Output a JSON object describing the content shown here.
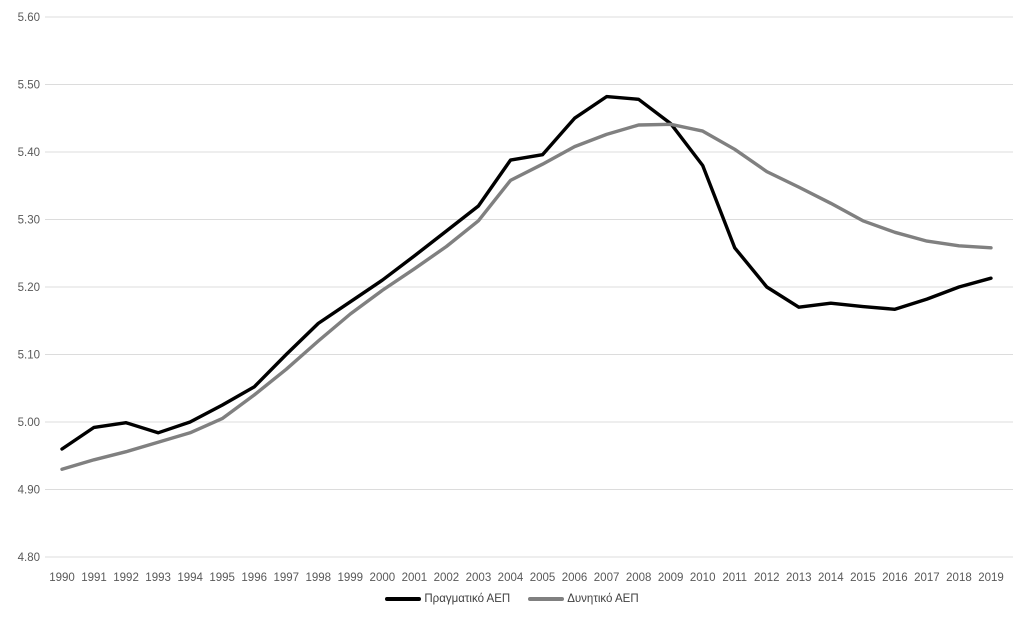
{
  "page": {
    "background_color": "#ffffff"
  },
  "chart_data": {
    "type": "line",
    "title": "",
    "xlabel": "",
    "ylabel": "",
    "x": [
      1990,
      1991,
      1992,
      1993,
      1994,
      1995,
      1996,
      1997,
      1998,
      1999,
      2000,
      2001,
      2002,
      2003,
      2004,
      2005,
      2006,
      2007,
      2008,
      2009,
      2010,
      2011,
      2012,
      2013,
      2014,
      2015,
      2016,
      2017,
      2018,
      2019
    ],
    "series": [
      {
        "name": "Πραγματικό ΑΕΠ",
        "color": "#000000",
        "stroke_width": 3.4,
        "values": [
          4.96,
          4.992,
          4.999,
          4.984,
          5.0,
          5.025,
          5.052,
          5.1,
          5.146,
          5.178,
          5.21,
          5.246,
          5.283,
          5.32,
          5.388,
          5.396,
          5.45,
          5.482,
          5.478,
          5.442,
          5.38,
          5.258,
          5.2,
          5.17,
          5.176,
          5.171,
          5.167,
          5.182,
          5.2,
          5.213
        ]
      },
      {
        "name": "Δυνητικό ΑΕΠ",
        "color": "#808080",
        "stroke_width": 3.4,
        "values": [
          4.93,
          4.944,
          4.956,
          4.97,
          4.984,
          5.005,
          5.04,
          5.078,
          5.12,
          5.16,
          5.195,
          5.227,
          5.26,
          5.298,
          5.358,
          5.382,
          5.408,
          5.426,
          5.44,
          5.441,
          5.431,
          5.404,
          5.371,
          5.348,
          5.324,
          5.298,
          5.281,
          5.268,
          5.261,
          5.258
        ]
      }
    ],
    "ylim": [
      4.8,
      5.6
    ],
    "yticks": [
      4.8,
      4.9,
      5.0,
      5.1,
      5.2,
      5.3,
      5.4,
      5.5,
      5.6
    ],
    "ytick_labels": [
      "4.80",
      "4.90",
      "5.00",
      "5.10",
      "5.20",
      "5.30",
      "5.40",
      "5.50",
      "5.60"
    ],
    "xtick_labels": [
      "1990",
      "1991",
      "1992",
      "1993",
      "1994",
      "1995",
      "1996",
      "1997",
      "1998",
      "1999",
      "2000",
      "2001",
      "2002",
      "2003",
      "2004",
      "2005",
      "2006",
      "2007",
      "2008",
      "2009",
      "2010",
      "2011",
      "2012",
      "2013",
      "2014",
      "2015",
      "2016",
      "2017",
      "2018",
      "2019"
    ],
    "grid": "horizontal",
    "gridline_color": "#dcdcdc",
    "axis_label_color": "#595959",
    "legend_position": "bottom-center"
  }
}
